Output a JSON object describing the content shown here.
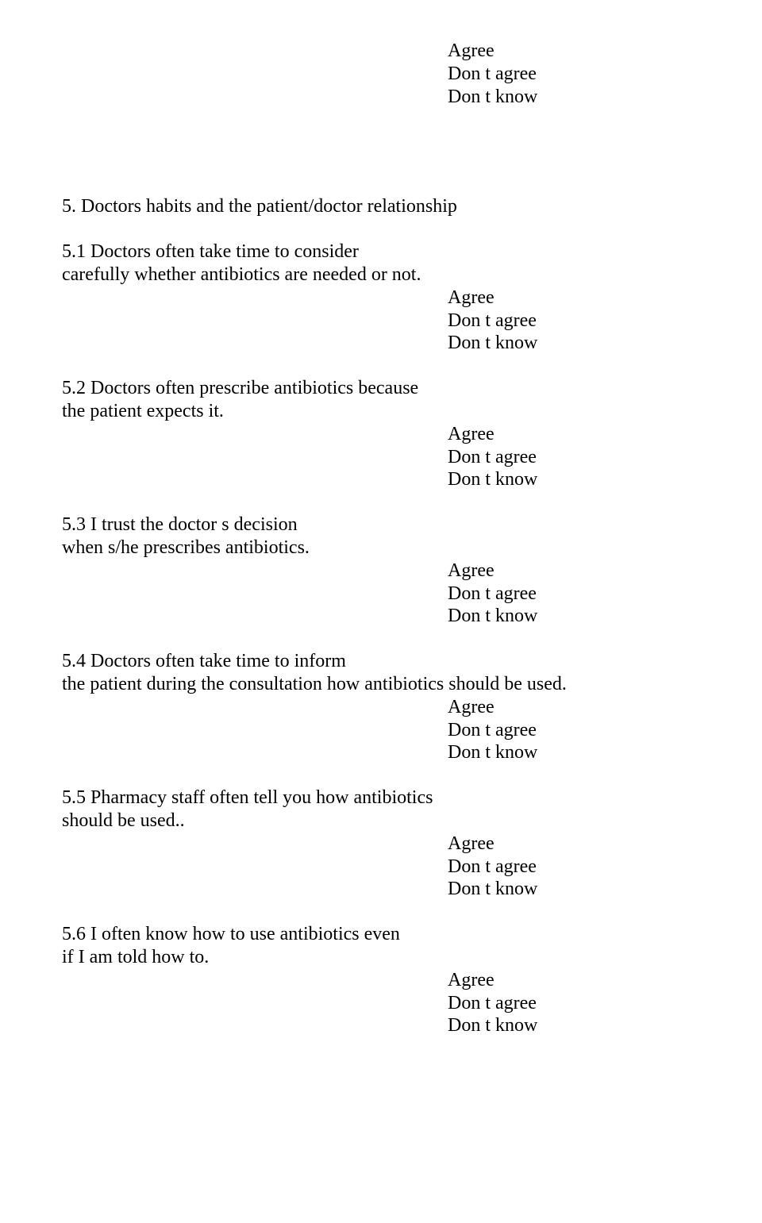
{
  "options": {
    "agree": "Agree",
    "dont_agree": "Don t agree",
    "dont_know": "Don t know"
  },
  "sections": {
    "s5": {
      "heading": "5. Doctors  habits and the patient/doctor relationship",
      "q1_l1": "5.1 Doctors often take time to consider",
      "q1_l2": "carefully whether antibiotics are needed or not.",
      "q2_l1": "5.2 Doctors often prescribe antibiotics because",
      "q2_l2": "the patient expects it.",
      "q3_l1": "5.3  I trust the doctor s decision",
      "q3_l2": "when s/he prescribes antibiotics.",
      "q4_l1": "5.4 Doctors often take time to inform",
      "q4_l2": "the patient during the consultation how antibiotics should be used.",
      "q5_l1": "5.5 Pharmacy staff often tell you how antibiotics",
      "q5_l2": "should be used..",
      "q6_l1": "5.6 I often know how to use antibiotics even",
      "q6_l2": "if I am told how to."
    }
  }
}
